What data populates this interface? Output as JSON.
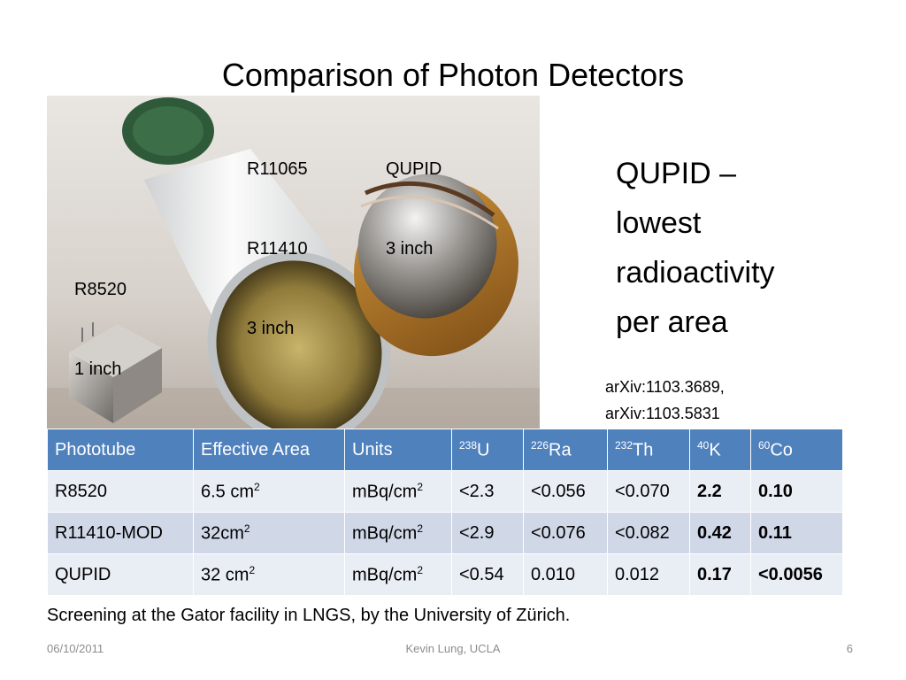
{
  "slide": {
    "title": "Comparison of Photon Detectors",
    "labels": {
      "r11065": "R11065",
      "r11410": "R11410",
      "r_size": "3 inch",
      "qupid": "QUPID",
      "q_size": "3 inch",
      "r8520": "R8520",
      "r8520_size": "1 inch"
    },
    "side_text": [
      "QUPID –",
      "lowest",
      "radioactivity",
      "per area"
    ],
    "refs": [
      "arXiv:1103.3689,",
      "arXiv:1103.5831"
    ],
    "table": {
      "headers": {
        "phototube": "Phototube",
        "area": "Effective Area",
        "units": "Units",
        "u_mass": "238",
        "u": "U",
        "ra_mass": "226",
        "ra": "Ra",
        "th_mass": "232",
        "th": "Th",
        "k_mass": "40",
        "k": "K",
        "co_mass": "60",
        "co": "Co"
      },
      "rows": [
        {
          "name": "R8520",
          "area": "6.5 cm",
          "area_exp": "2",
          "units": "mBq/cm",
          "units_exp": "2",
          "u": "<2.3",
          "ra": "<0.056",
          "th": "<0.070",
          "k": "2.2",
          "co": "0.10"
        },
        {
          "name": "R11410-MOD",
          "area": "32cm",
          "area_exp": "2",
          "units": "mBq/cm",
          "units_exp": "2",
          "u": "<2.9",
          "ra": "<0.076",
          "th": "<0.082",
          "k": "0.42",
          "co": "0.11"
        },
        {
          "name": "QUPID",
          "area": "32 cm",
          "area_exp": "2",
          "units": "mBq/cm",
          "units_exp": "2",
          "u": "<0.54",
          "ra": "0.010",
          "th": "0.012",
          "k": "0.17",
          "co": "<0.0056"
        }
      ]
    },
    "caption": "Screening at the Gator facility in LNGS, by the University of Zürich.",
    "footer": {
      "date": "06/10/2011",
      "author": "Kevin Lung, UCLA",
      "page": "6"
    }
  }
}
